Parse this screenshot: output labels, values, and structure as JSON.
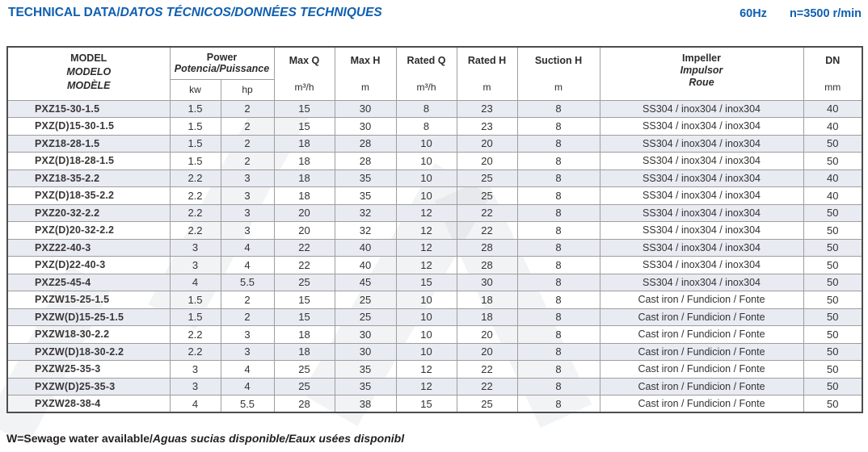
{
  "page": {
    "title_main": "TECHNICAL DATA/",
    "title_italic": "DATOS TÉCNICOS/DONNÉES TECHNIQUES",
    "frequency": "60Hz",
    "speed": "n=3500 r/min",
    "footnote_main": "W=Sewage water available/",
    "footnote_italic": "Aguas sucias disponible/Eaux usées disponibl"
  },
  "colors": {
    "accent_blue": "#0f5fb0",
    "row_shade": "#e9ebf2",
    "grid_line": "#9e9e9e",
    "outer_border": "#4d4d4d"
  },
  "table": {
    "header": {
      "model_lines": [
        "MODEL",
        "MODELO",
        "MODÈLE"
      ],
      "power_label": "Power",
      "power_sub": "Potencia/Puissance",
      "power_units": [
        "kw",
        "hp"
      ],
      "max_q_label": "Max Q",
      "max_q_unit": "m³/h",
      "max_h_label": "Max H",
      "max_h_unit": "m",
      "rated_q_label": "Rated Q",
      "rated_q_unit": "m³/h",
      "rated_h_label": "Rated H",
      "rated_h_unit": "m",
      "suction_h_label": "Suction H",
      "suction_h_unit": "m",
      "impeller_lines": [
        "Impeller",
        "Impulsor",
        "Roue"
      ],
      "dn_label": "DN",
      "dn_unit": "mm"
    },
    "column_keys": [
      "model",
      "kw",
      "hp",
      "max_q",
      "max_h",
      "rated_q",
      "rated_h",
      "suction_h",
      "impeller",
      "dn"
    ],
    "rows": [
      {
        "model": "PXZ15-30-1.5",
        "kw": "1.5",
        "hp": "2",
        "max_q": "15",
        "max_h": "30",
        "rated_q": "8",
        "rated_h": "23",
        "suction_h": "8",
        "impeller": "SS304 / inox304 / inox304",
        "dn": "40"
      },
      {
        "model": "PXZ(D)15-30-1.5",
        "kw": "1.5",
        "hp": "2",
        "max_q": "15",
        "max_h": "30",
        "rated_q": "8",
        "rated_h": "23",
        "suction_h": "8",
        "impeller": "SS304 / inox304 / inox304",
        "dn": "40"
      },
      {
        "model": "PXZ18-28-1.5",
        "kw": "1.5",
        "hp": "2",
        "max_q": "18",
        "max_h": "28",
        "rated_q": "10",
        "rated_h": "20",
        "suction_h": "8",
        "impeller": "SS304 / inox304 / inox304",
        "dn": "50"
      },
      {
        "model": "PXZ(D)18-28-1.5",
        "kw": "1.5",
        "hp": "2",
        "max_q": "18",
        "max_h": "28",
        "rated_q": "10",
        "rated_h": "20",
        "suction_h": "8",
        "impeller": "SS304 / inox304 / inox304",
        "dn": "50"
      },
      {
        "model": "PXZ18-35-2.2",
        "kw": "2.2",
        "hp": "3",
        "max_q": "18",
        "max_h": "35",
        "rated_q": "10",
        "rated_h": "25",
        "suction_h": "8",
        "impeller": "SS304 / inox304 / inox304",
        "dn": "40"
      },
      {
        "model": "PXZ(D)18-35-2.2",
        "kw": "2.2",
        "hp": "3",
        "max_q": "18",
        "max_h": "35",
        "rated_q": "10",
        "rated_h": "25",
        "suction_h": "8",
        "impeller": "SS304 / inox304 / inox304",
        "dn": "40"
      },
      {
        "model": "PXZ20-32-2.2",
        "kw": "2.2",
        "hp": "3",
        "max_q": "20",
        "max_h": "32",
        "rated_q": "12",
        "rated_h": "22",
        "suction_h": "8",
        "impeller": "SS304 / inox304 / inox304",
        "dn": "50"
      },
      {
        "model": "PXZ(D)20-32-2.2",
        "kw": "2.2",
        "hp": "3",
        "max_q": "20",
        "max_h": "32",
        "rated_q": "12",
        "rated_h": "22",
        "suction_h": "8",
        "impeller": "SS304 / inox304 / inox304",
        "dn": "50"
      },
      {
        "model": "PXZ22-40-3",
        "kw": "3",
        "hp": "4",
        "max_q": "22",
        "max_h": "40",
        "rated_q": "12",
        "rated_h": "28",
        "suction_h": "8",
        "impeller": "SS304 / inox304 / inox304",
        "dn": "50"
      },
      {
        "model": "PXZ(D)22-40-3",
        "kw": "3",
        "hp": "4",
        "max_q": "22",
        "max_h": "40",
        "rated_q": "12",
        "rated_h": "28",
        "suction_h": "8",
        "impeller": "SS304 / inox304 / inox304",
        "dn": "50"
      },
      {
        "model": "PXZ25-45-4",
        "kw": "4",
        "hp": "5.5",
        "max_q": "25",
        "max_h": "45",
        "rated_q": "15",
        "rated_h": "30",
        "suction_h": "8",
        "impeller": "SS304 / inox304 / inox304",
        "dn": "50"
      },
      {
        "model": "PXZW15-25-1.5",
        "kw": "1.5",
        "hp": "2",
        "max_q": "15",
        "max_h": "25",
        "rated_q": "10",
        "rated_h": "18",
        "suction_h": "8",
        "impeller": "Cast iron / Fundicion / Fonte",
        "dn": "50"
      },
      {
        "model": "PXZW(D)15-25-1.5",
        "kw": "1.5",
        "hp": "2",
        "max_q": "15",
        "max_h": "25",
        "rated_q": "10",
        "rated_h": "18",
        "suction_h": "8",
        "impeller": "Cast iron / Fundicion / Fonte",
        "dn": "50"
      },
      {
        "model": "PXZW18-30-2.2",
        "kw": "2.2",
        "hp": "3",
        "max_q": "18",
        "max_h": "30",
        "rated_q": "10",
        "rated_h": "20",
        "suction_h": "8",
        "impeller": "Cast iron / Fundicion / Fonte",
        "dn": "50"
      },
      {
        "model": "PXZW(D)18-30-2.2",
        "kw": "2.2",
        "hp": "3",
        "max_q": "18",
        "max_h": "30",
        "rated_q": "10",
        "rated_h": "20",
        "suction_h": "8",
        "impeller": "Cast iron / Fundicion / Fonte",
        "dn": "50"
      },
      {
        "model": "PXZW25-35-3",
        "kw": "3",
        "hp": "4",
        "max_q": "25",
        "max_h": "35",
        "rated_q": "12",
        "rated_h": "22",
        "suction_h": "8",
        "impeller": "Cast iron / Fundicion / Fonte",
        "dn": "50"
      },
      {
        "model": "PXZW(D)25-35-3",
        "kw": "3",
        "hp": "4",
        "max_q": "25",
        "max_h": "35",
        "rated_q": "12",
        "rated_h": "22",
        "suction_h": "8",
        "impeller": "Cast iron / Fundicion / Fonte",
        "dn": "50"
      },
      {
        "model": "PXZW28-38-4",
        "kw": "4",
        "hp": "5.5",
        "max_q": "28",
        "max_h": "38",
        "rated_q": "15",
        "rated_h": "25",
        "suction_h": "8",
        "impeller": "Cast iron / Fundicion / Fonte",
        "dn": "50"
      }
    ]
  }
}
